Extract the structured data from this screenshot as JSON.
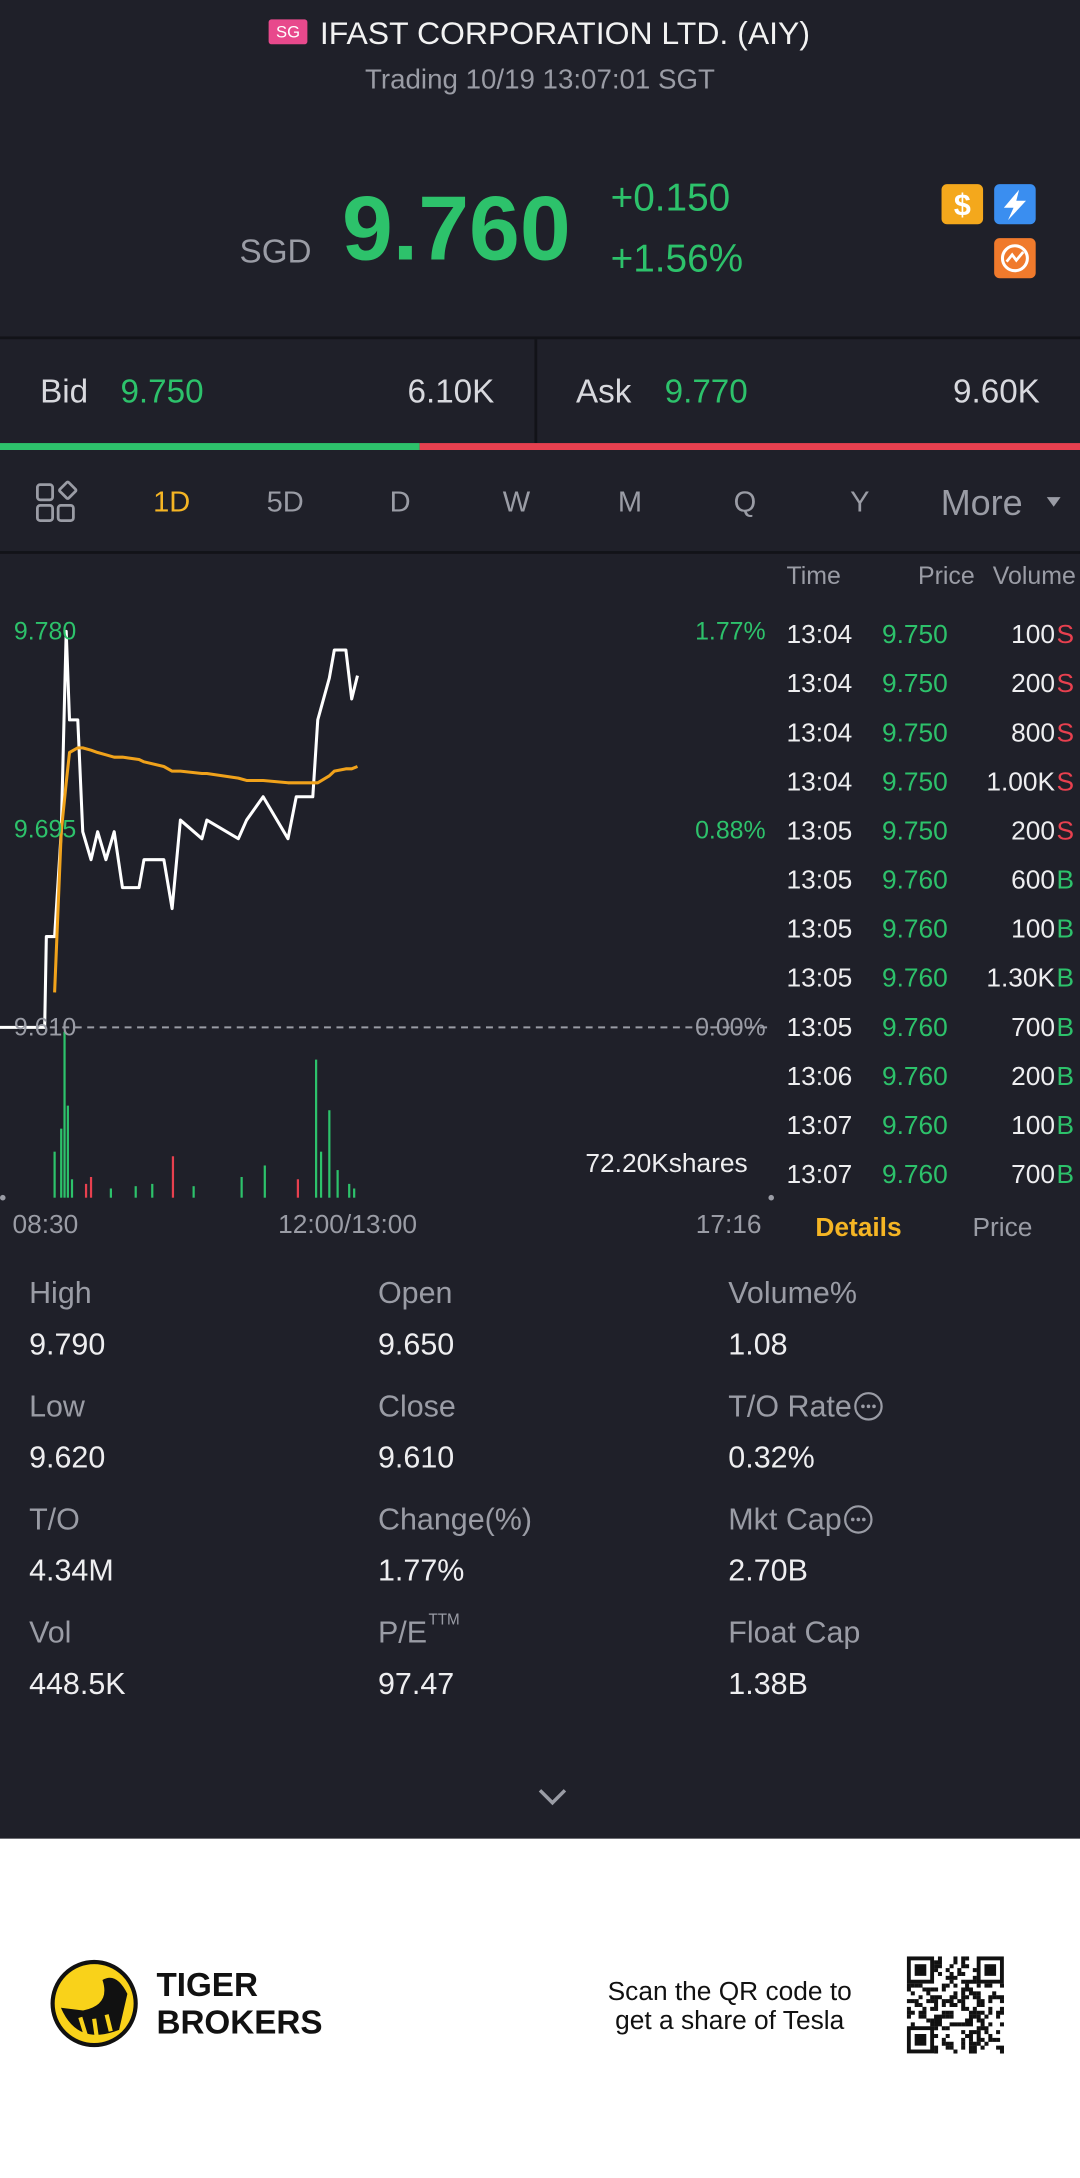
{
  "header": {
    "badge": "SG",
    "title": "IFAST CORPORATION LTD. (AIY)",
    "status": "Trading 10/19 13:07:01 SGT",
    "icon_dollar": "$"
  },
  "price": {
    "currency": "SGD",
    "last": "9.760",
    "change": "+0.150",
    "change_pct": "+1.56%"
  },
  "quote": {
    "bid": {
      "label": "Bid",
      "price": "9.750",
      "size": {
        "value": 6100,
        "label": "6.10K"
      },
      "color": "#2dc26b"
    },
    "ask": {
      "label": "Ask",
      "price": "9.770",
      "size": {
        "value": 9600,
        "label": "9.60K"
      },
      "color": "#e8404f"
    }
  },
  "periods": {
    "items": [
      "1D",
      "5D",
      "D",
      "W",
      "M",
      "Q",
      "Y",
      "More"
    ],
    "active": 0
  },
  "trades": {
    "header": {
      "time": "Time",
      "price": "Price",
      "volume": "Volume"
    },
    "side_colors": {
      "S": "#e8404f",
      "B": "#2dc26b"
    },
    "rows": [
      [
        "13:04",
        "9.750",
        "100",
        "S"
      ],
      [
        "13:04",
        "9.750",
        "200",
        "S"
      ],
      [
        "13:04",
        "9.750",
        "800",
        "S"
      ],
      [
        "13:04",
        "9.750",
        "1.00K",
        "S"
      ],
      [
        "13:05",
        "9.750",
        "200",
        "S"
      ],
      [
        "13:05",
        "9.760",
        "600",
        "B"
      ],
      [
        "13:05",
        "9.760",
        "100",
        "B"
      ],
      [
        "13:05",
        "9.760",
        "1.30K",
        "B"
      ],
      [
        "13:05",
        "9.760",
        "700",
        "B"
      ],
      [
        "13:06",
        "9.760",
        "200",
        "B"
      ],
      [
        "13:07",
        "9.760",
        "100",
        "B"
      ],
      [
        "13:07",
        "9.760",
        "700",
        "B"
      ]
    ]
  },
  "chart_data": {
    "type": "line",
    "x": [
      0,
      27,
      28,
      33,
      37,
      40,
      42,
      47,
      50,
      55,
      59,
      64,
      69,
      74,
      84,
      87,
      99,
      104,
      109,
      122,
      125,
      144,
      149,
      159,
      174,
      179,
      189,
      192,
      199,
      202,
      209,
      212.5,
      216
    ],
    "series": [
      {
        "color": "#ffffff",
        "values": [
          9.61,
          9.61,
          9.649,
          9.649,
          9.694,
          9.78,
          9.742,
          9.742,
          9.694,
          9.682,
          9.694,
          9.682,
          9.694,
          9.67,
          9.67,
          9.682,
          9.682,
          9.661,
          9.699,
          9.691,
          9.699,
          9.691,
          9.699,
          9.709,
          9.691,
          9.709,
          9.709,
          9.742,
          9.76,
          9.772,
          9.772,
          9.751,
          9.761
        ]
      },
      {
        "color": "#f0a21b",
        "values": [
          null,
          null,
          null,
          9.625,
          9.694,
          9.715,
          9.728,
          9.73,
          9.73,
          9.729,
          9.728,
          9.727,
          9.726,
          9.726,
          9.725,
          9.724,
          9.722,
          9.72,
          9.72,
          9.719,
          9.719,
          9.717,
          9.716,
          9.716,
          9.715,
          9.715,
          9.715,
          9.715,
          9.718,
          9.72,
          9.721,
          9.721,
          9.722
        ]
      }
    ],
    "xlim": [
      0,
      466
    ],
    "xticks": [
      {
        "value": 0,
        "label": "08:30"
      },
      {
        "value": 210,
        "label": "12:00/13:00"
      },
      {
        "value": 466,
        "label": "17:16"
      }
    ],
    "ylim": [
      9.61,
      9.78
    ],
    "yticks": [
      {
        "value": 9.78,
        "label": "9.780"
      },
      {
        "value": 9.695,
        "label": "9.695"
      },
      {
        "value": 9.61,
        "label": "9.610"
      }
    ],
    "y2lim": [
      0,
      1.77
    ],
    "y2ticks": [
      {
        "value": 1.77,
        "label": "1.77%"
      },
      {
        "value": 0.88,
        "label": "0.88%"
      },
      {
        "value": 0,
        "label": "0.00%"
      }
    ],
    "volume": {
      "x": [
        33,
        37,
        39,
        41,
        43.5,
        52,
        55,
        67,
        82,
        92,
        104.5,
        117,
        146,
        160,
        180,
        191,
        194,
        199,
        204,
        211,
        214
      ],
      "values": [
        20000,
        30000,
        72200,
        40000,
        8000,
        6000,
        9000,
        4000,
        5000,
        6000,
        18000,
        5000,
        9000,
        14000,
        8000,
        60000,
        20000,
        38000,
        12000,
        6000,
        4000
      ],
      "colors": [
        "#2dc26b",
        "#2dc26b",
        "#2dc26b",
        "#2dc26b",
        "#2dc26b",
        "#e8404f",
        "#e8404f",
        "#2dc26b",
        "#2dc26b",
        "#2dc26b",
        "#e8404f",
        "#2dc26b",
        "#2dc26b",
        "#2dc26b",
        "#e8404f",
        "#2dc26b",
        "#2dc26b",
        "#2dc26b",
        "#2dc26b",
        "#2dc26b",
        "#2dc26b"
      ],
      "ylim": [
        0,
        72200
      ],
      "yticks": [
        {
          "value": 72200,
          "label": "72.20Kshares"
        }
      ]
    }
  },
  "details": {
    "tabs": [
      "Details",
      "Price"
    ],
    "active": 0,
    "items": [
      {
        "label": "High",
        "value": "9.790"
      },
      {
        "label": "Open",
        "value": "9.650"
      },
      {
        "label": "Volume%",
        "value": "1.08"
      },
      {
        "label": "Low",
        "value": "9.620"
      },
      {
        "label": "Close",
        "value": "9.610"
      },
      {
        "label": "T/O Rate",
        "value": "0.32%",
        "info": true
      },
      {
        "label": "T/O",
        "value": "4.34M"
      },
      {
        "label": "Change(%)",
        "value": "1.77%"
      },
      {
        "label": "Mkt Cap",
        "value": "2.70B",
        "info": true
      },
      {
        "label": "Vol",
        "value": "448.5K"
      },
      {
        "label": "P/E",
        "sup": "TTM",
        "value": "97.47"
      },
      {
        "label": "Float Cap",
        "value": "1.38B"
      }
    ]
  },
  "footer": {
    "brand": [
      "TIGER",
      "BROKERS"
    ],
    "promo": [
      "Scan the QR code to",
      "get a share of Tesla"
    ]
  }
}
